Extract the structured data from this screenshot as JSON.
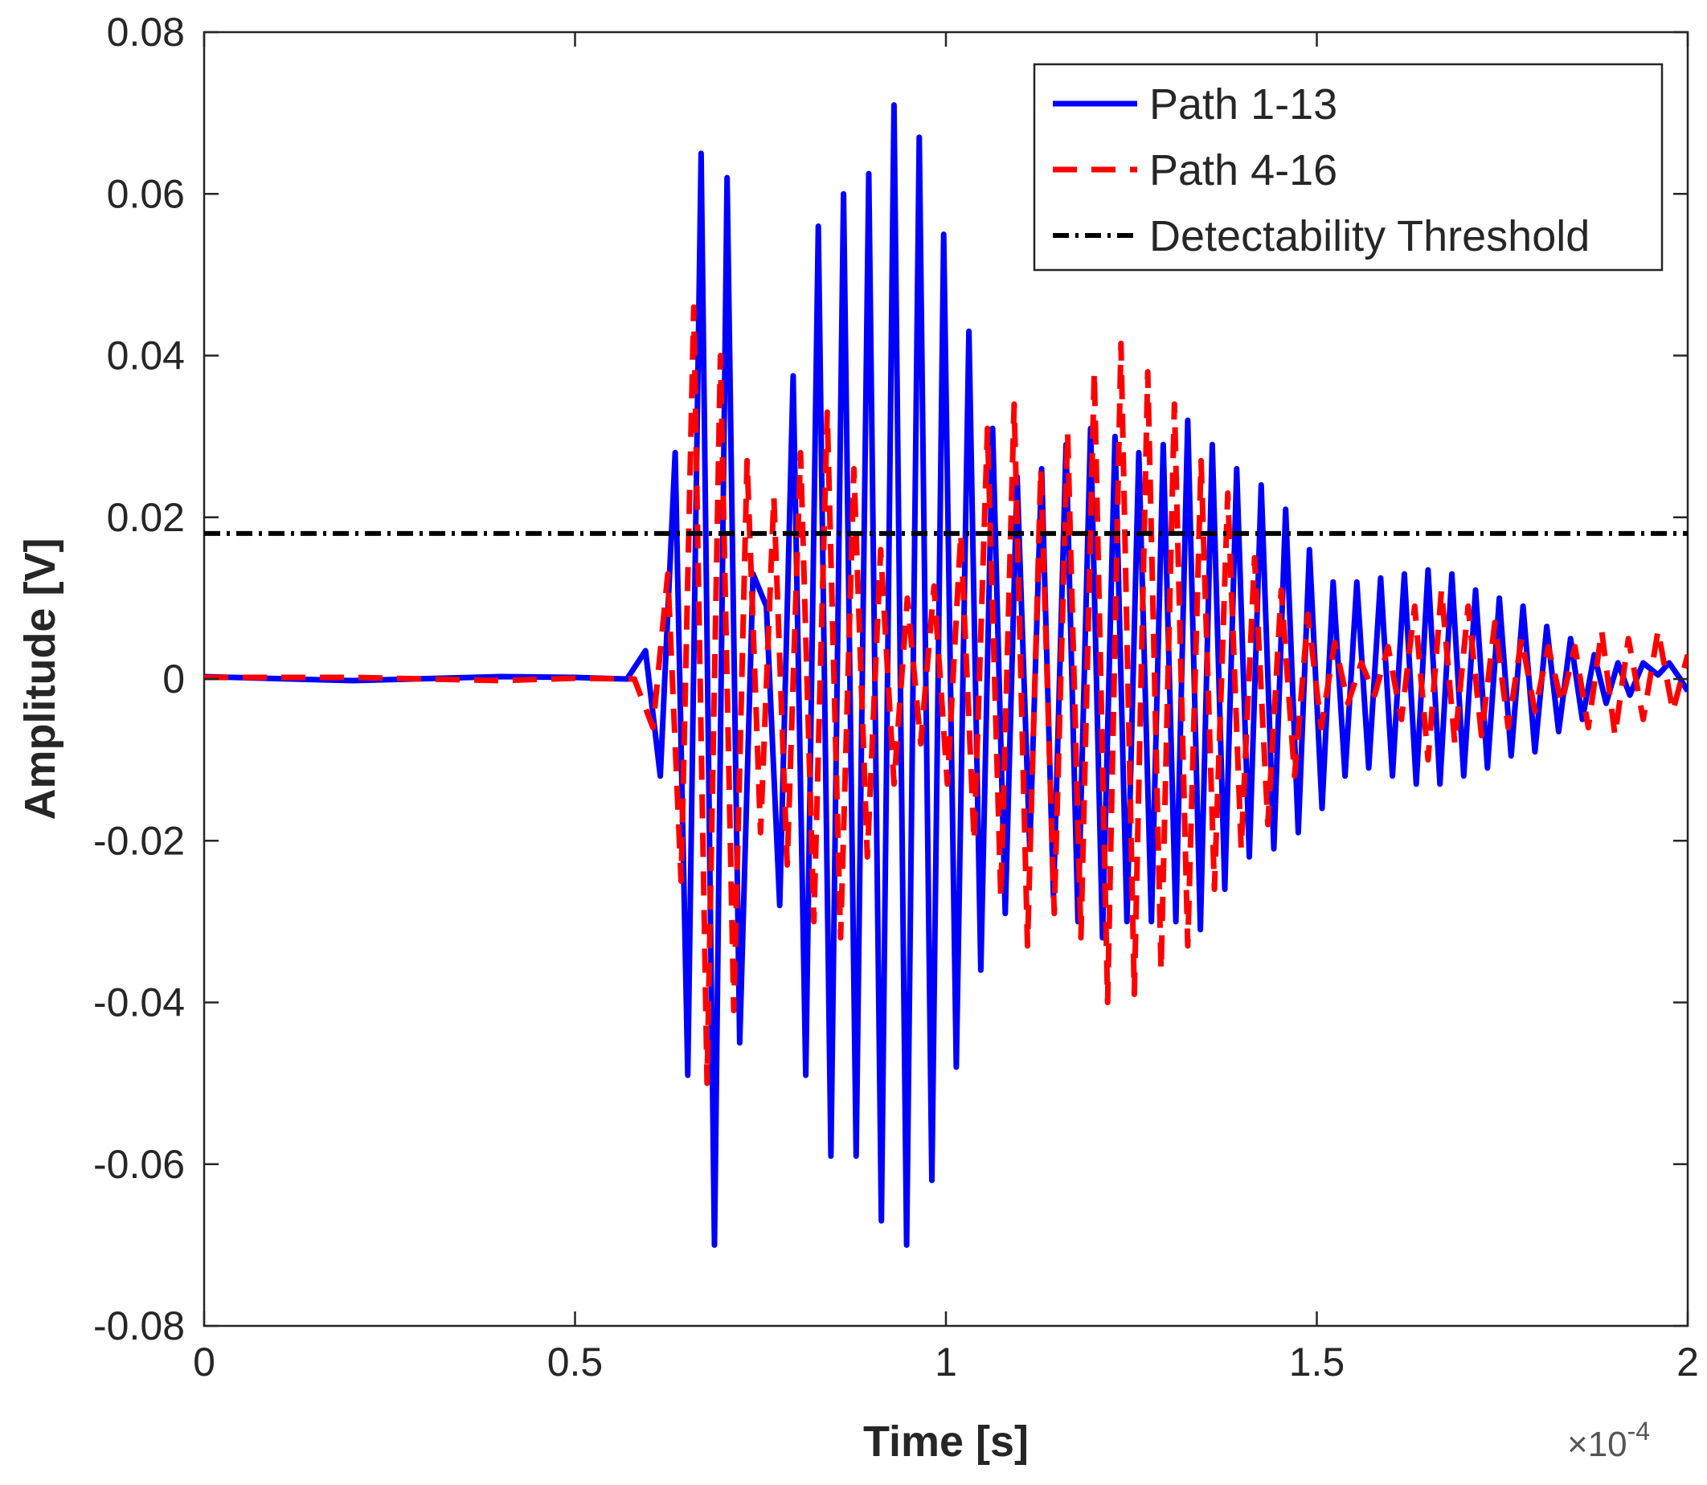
{
  "chart_data": {
    "type": "line",
    "title": "",
    "xlabel": "Time [s]",
    "ylabel": "Amplitude [V]",
    "x_exponent_prefix": "×10",
    "x_exponent_power": "-4",
    "xlim": [
      0,
      2
    ],
    "ylim": [
      -0.08,
      0.08
    ],
    "xticks": [
      0,
      0.5,
      1,
      1.5,
      2
    ],
    "xtick_labels": [
      "0",
      "0.5",
      "1",
      "1.5",
      "2"
    ],
    "yticks": [
      0.08,
      0.06,
      0.04,
      0.02,
      0,
      -0.02,
      -0.04,
      -0.06,
      -0.08
    ],
    "ytick_labels": [
      "0.08",
      "0.06",
      "0.04",
      "0.02",
      "0",
      "-0.02",
      "-0.04",
      "-0.06",
      "-0.08"
    ],
    "grid": false,
    "legend_position": "top-right",
    "series": [
      {
        "name": "Path 1-13",
        "color": "#0000ff",
        "style": "solid",
        "points": [
          [
            0,
            0.0003
          ],
          [
            0.2,
            -0.0002
          ],
          [
            0.4,
            0.0003
          ],
          [
            0.5,
            0.0002
          ],
          [
            0.57,
            0.0
          ],
          [
            0.595,
            0.0035
          ],
          [
            0.615,
            -0.012
          ],
          [
            0.635,
            0.028
          ],
          [
            0.652,
            -0.049
          ],
          [
            0.67,
            0.065
          ],
          [
            0.688,
            -0.07
          ],
          [
            0.705,
            0.062
          ],
          [
            0.722,
            -0.045
          ],
          [
            0.74,
            0.013
          ],
          [
            0.758,
            0.009
          ],
          [
            0.776,
            -0.028
          ],
          [
            0.794,
            0.0375
          ],
          [
            0.811,
            -0.049
          ],
          [
            0.828,
            0.056
          ],
          [
            0.845,
            -0.059
          ],
          [
            0.862,
            0.06
          ],
          [
            0.879,
            -0.059
          ],
          [
            0.896,
            0.0625
          ],
          [
            0.913,
            -0.067
          ],
          [
            0.93,
            0.071
          ],
          [
            0.947,
            -0.07
          ],
          [
            0.964,
            0.067
          ],
          [
            0.981,
            -0.062
          ],
          [
            0.997,
            0.055
          ],
          [
            1.014,
            -0.048
          ],
          [
            1.031,
            0.043
          ],
          [
            1.047,
            -0.036
          ],
          [
            1.063,
            0.031
          ],
          [
            1.08,
            -0.029
          ],
          [
            1.096,
            0.025
          ],
          [
            1.113,
            -0.021
          ],
          [
            1.129,
            0.026
          ],
          [
            1.145,
            -0.027
          ],
          [
            1.162,
            0.029
          ],
          [
            1.178,
            -0.03
          ],
          [
            1.195,
            0.031
          ],
          [
            1.211,
            -0.032
          ],
          [
            1.228,
            0.03
          ],
          [
            1.244,
            -0.03
          ],
          [
            1.26,
            0.028
          ],
          [
            1.277,
            -0.03
          ],
          [
            1.293,
            0.029
          ],
          [
            1.31,
            -0.03
          ],
          [
            1.326,
            0.032
          ],
          [
            1.343,
            -0.031
          ],
          [
            1.359,
            0.029
          ],
          [
            1.376,
            -0.026
          ],
          [
            1.392,
            0.026
          ],
          [
            1.409,
            -0.022
          ],
          [
            1.425,
            0.024
          ],
          [
            1.442,
            -0.021
          ],
          [
            1.458,
            0.021
          ],
          [
            1.475,
            -0.019
          ],
          [
            1.49,
            0.016
          ],
          [
            1.507,
            -0.016
          ],
          [
            1.522,
            0.012
          ],
          [
            1.538,
            -0.012
          ],
          [
            1.554,
            0.012
          ],
          [
            1.57,
            -0.011
          ],
          [
            1.586,
            0.0125
          ],
          [
            1.602,
            -0.012
          ],
          [
            1.618,
            0.013
          ],
          [
            1.634,
            -0.013
          ],
          [
            1.65,
            0.0135
          ],
          [
            1.666,
            -0.013
          ],
          [
            1.682,
            0.013
          ],
          [
            1.698,
            -0.012
          ],
          [
            1.714,
            0.011
          ],
          [
            1.73,
            -0.011
          ],
          [
            1.746,
            0.01
          ],
          [
            1.762,
            -0.0095
          ],
          [
            1.778,
            0.009
          ],
          [
            1.794,
            -0.009
          ],
          [
            1.81,
            0.0065
          ],
          [
            1.826,
            -0.0065
          ],
          [
            1.842,
            0.005
          ],
          [
            1.858,
            -0.005
          ],
          [
            1.874,
            0.003
          ],
          [
            1.89,
            -0.003
          ],
          [
            1.906,
            0.002
          ],
          [
            1.922,
            -0.002
          ],
          [
            1.94,
            0.002
          ],
          [
            1.96,
            0.0005
          ],
          [
            1.975,
            0.002
          ],
          [
            1.99,
            0.0
          ],
          [
            2.0,
            -0.0015
          ]
        ]
      },
      {
        "name": "Path 4-16",
        "color": "#ff0000",
        "style": "dashed",
        "points": [
          [
            0,
            0.0002
          ],
          [
            0.2,
            0.0002
          ],
          [
            0.4,
            -0.0002
          ],
          [
            0.5,
            0.0001
          ],
          [
            0.58,
            0.0
          ],
          [
            0.605,
            -0.006
          ],
          [
            0.625,
            0.013
          ],
          [
            0.643,
            -0.025
          ],
          [
            0.66,
            0.046
          ],
          [
            0.678,
            -0.05
          ],
          [
            0.696,
            0.04
          ],
          [
            0.714,
            -0.041
          ],
          [
            0.732,
            0.027
          ],
          [
            0.75,
            -0.019
          ],
          [
            0.768,
            0.0225
          ],
          [
            0.786,
            -0.023
          ],
          [
            0.804,
            0.028
          ],
          [
            0.822,
            -0.03
          ],
          [
            0.84,
            0.033
          ],
          [
            0.858,
            -0.032
          ],
          [
            0.876,
            0.026
          ],
          [
            0.894,
            -0.022
          ],
          [
            0.912,
            0.016
          ],
          [
            0.93,
            -0.013
          ],
          [
            0.948,
            0.01
          ],
          [
            0.966,
            -0.008
          ],
          [
            0.984,
            0.0115
          ],
          [
            1.002,
            -0.013
          ],
          [
            1.02,
            0.018
          ],
          [
            1.038,
            -0.02
          ],
          [
            1.056,
            0.031
          ],
          [
            1.074,
            -0.027
          ],
          [
            1.092,
            0.034
          ],
          [
            1.11,
            -0.033
          ],
          [
            1.128,
            0.026
          ],
          [
            1.146,
            -0.029
          ],
          [
            1.164,
            0.0305
          ],
          [
            1.182,
            -0.032
          ],
          [
            1.2,
            0.038
          ],
          [
            1.218,
            -0.04
          ],
          [
            1.236,
            0.0415
          ],
          [
            1.254,
            -0.039
          ],
          [
            1.272,
            0.038
          ],
          [
            1.29,
            -0.036
          ],
          [
            1.308,
            0.034
          ],
          [
            1.326,
            -0.033
          ],
          [
            1.344,
            0.027
          ],
          [
            1.362,
            -0.026
          ],
          [
            1.38,
            0.023
          ],
          [
            1.398,
            -0.021
          ],
          [
            1.416,
            0.015
          ],
          [
            1.434,
            -0.018
          ],
          [
            1.452,
            0.011
          ],
          [
            1.47,
            -0.012
          ],
          [
            1.488,
            0.008
          ],
          [
            1.506,
            -0.006
          ],
          [
            1.524,
            0.0045
          ],
          [
            1.542,
            -0.003
          ],
          [
            1.56,
            0.002
          ],
          [
            1.578,
            -0.002
          ],
          [
            1.596,
            0.004
          ],
          [
            1.614,
            -0.005
          ],
          [
            1.632,
            0.009
          ],
          [
            1.65,
            -0.01
          ],
          [
            1.668,
            0.011
          ],
          [
            1.686,
            -0.008
          ],
          [
            1.704,
            0.009
          ],
          [
            1.722,
            -0.007
          ],
          [
            1.74,
            0.007
          ],
          [
            1.758,
            -0.006
          ],
          [
            1.776,
            0.005
          ],
          [
            1.794,
            -0.004
          ],
          [
            1.812,
            0.004
          ],
          [
            1.83,
            -0.003
          ],
          [
            1.848,
            0.004
          ],
          [
            1.866,
            -0.006
          ],
          [
            1.884,
            0.006
          ],
          [
            1.902,
            -0.007
          ],
          [
            1.92,
            0.005
          ],
          [
            1.94,
            -0.005
          ],
          [
            1.96,
            0.006
          ],
          [
            1.98,
            -0.004
          ],
          [
            2.0,
            0.003
          ]
        ]
      },
      {
        "name": "Detectability Threshold",
        "color": "#000000",
        "style": "dash-dot",
        "points": [
          [
            0,
            0.018
          ],
          [
            2,
            0.018
          ]
        ]
      }
    ]
  }
}
